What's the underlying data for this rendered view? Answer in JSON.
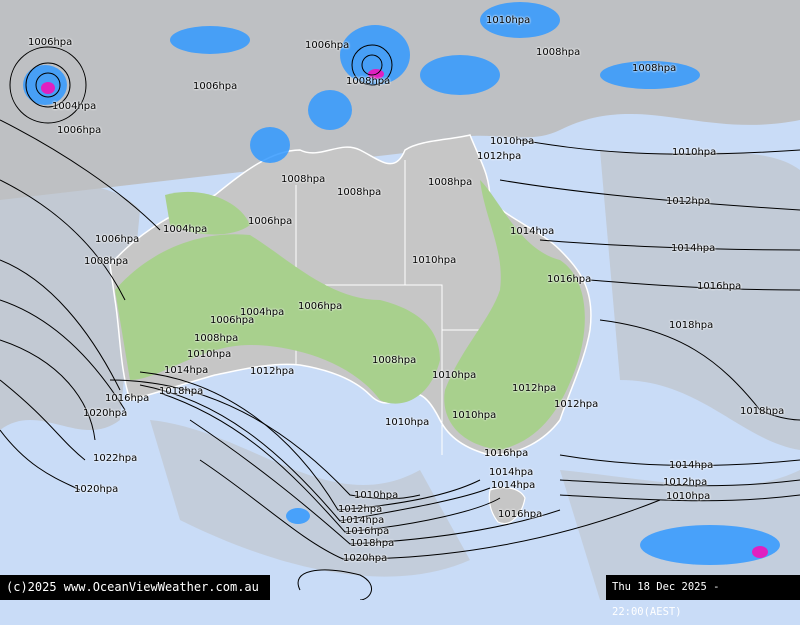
{
  "map": {
    "colors": {
      "ocean": "#c9dcf7",
      "cloud": "#bfbfbf",
      "land": "#c8c8c8",
      "rain_light": "#a8d08d",
      "rain_blue": "#3399ff",
      "rain_heavy": "#e020c0",
      "isobar": "#000000",
      "coast": "#ffffff"
    },
    "isobar_labels": [
      "1006hpa",
      "1006hpa",
      "1010hpa",
      "1008hpa",
      "1008hpa",
      "1006hpa",
      "1008hpa",
      "1004hpa",
      "1006hpa",
      "1010hpa",
      "1012hpa",
      "1010hpa",
      "1008hpa",
      "1008hpa",
      "1008hpa",
      "1012hpa",
      "1006hpa",
      "1004hpa",
      "1014hpa",
      "1006hpa",
      "1014hpa",
      "1008hpa",
      "1010hpa",
      "1016hpa",
      "1016hpa",
      "1004hpa",
      "1006hpa",
      "1006hpa",
      "1018hpa",
      "1008hpa",
      "1010hpa",
      "1008hpa",
      "1014hpa",
      "1012hpa",
      "1010hpa",
      "1018hpa",
      "1016hpa",
      "1012hpa",
      "1012hpa",
      "1020hpa",
      "1018hpa",
      "1010hpa",
      "1010hpa",
      "1016hpa",
      "1022hpa",
      "1014hpa",
      "1014hpa",
      "1014hpa",
      "1012hpa",
      "1020hpa",
      "1010hpa",
      "1010hpa",
      "1012hpa",
      "1016hpa",
      "1014hpa",
      "1016hpa",
      "1018hpa",
      "1020hpa"
    ]
  },
  "footer": {
    "copyright": "(c)2025 www.OceanViewWeather.com.au",
    "valid_time": "Thu 18 Dec 2025 - 22:00(AEST)"
  }
}
